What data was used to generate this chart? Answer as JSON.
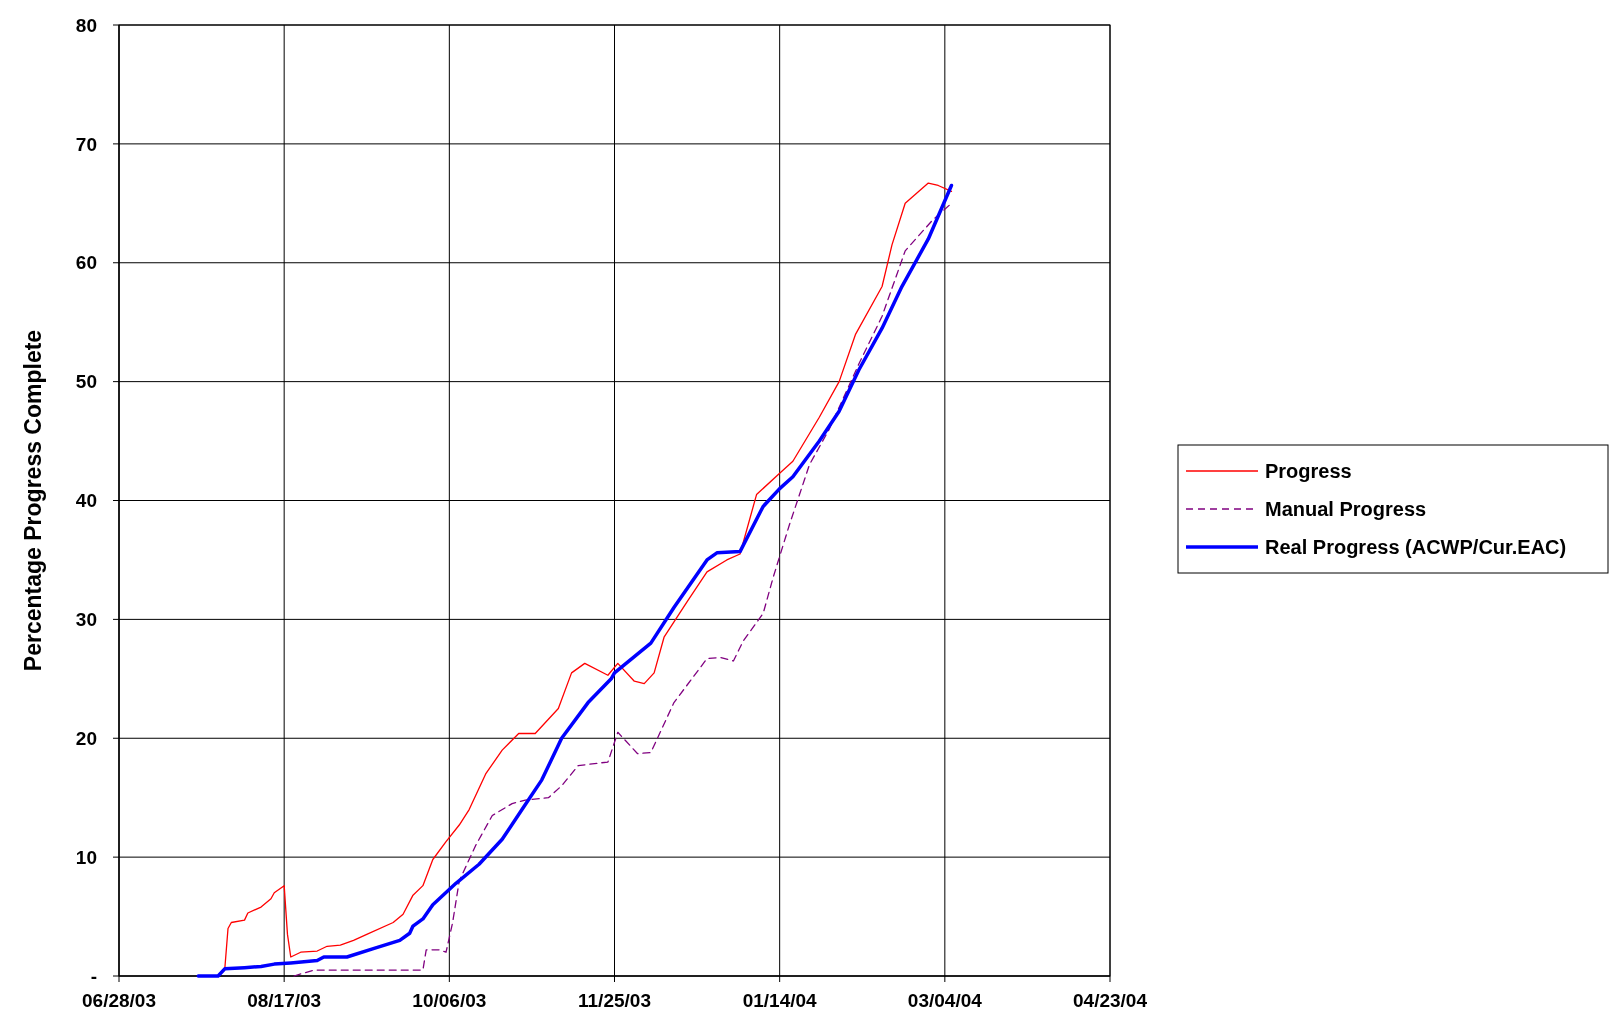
{
  "chart_data": {
    "type": "line",
    "ylabel": "Percentage Progress Complete",
    "xlim": [
      "2003-06-28",
      "2004-04-23"
    ],
    "xticks": [
      {
        "value": "2003-06-28",
        "label": "06/28/03"
      },
      {
        "value": "2003-08-17",
        "label": "08/17/03"
      },
      {
        "value": "2003-10-06",
        "label": "10/06/03"
      },
      {
        "value": "2003-11-25",
        "label": "11/25/03"
      },
      {
        "value": "2004-01-14",
        "label": "01/14/04"
      },
      {
        "value": "2004-03-04",
        "label": "03/04/04"
      },
      {
        "value": "2004-04-23",
        "label": "04/23/04"
      }
    ],
    "ylim": [
      0,
      80
    ],
    "yticks": [
      {
        "value": 0,
        "label": "-"
      },
      10,
      20,
      30,
      40,
      50,
      60,
      70,
      80
    ],
    "grid": true,
    "legend": "right",
    "series": [
      {
        "name": "Progress",
        "color": "#ff0000",
        "line_style": "solid",
        "x": [
          "2003-07-28",
          "2003-07-30",
          "2003-07-31",
          "2003-08-01",
          "2003-08-05",
          "2003-08-06",
          "2003-08-10",
          "2003-08-13",
          "2003-08-14",
          "2003-08-17",
          "2003-08-18",
          "2003-08-19",
          "2003-08-22",
          "2003-08-27",
          "2003-08-30",
          "2003-09-03",
          "2003-09-07",
          "2003-09-11",
          "2003-09-19",
          "2003-09-22",
          "2003-09-25",
          "2003-09-28",
          "2003-10-01",
          "2003-10-05",
          "2003-10-09",
          "2003-10-12",
          "2003-10-17",
          "2003-10-22",
          "2003-10-27",
          "2003-11-01",
          "2003-11-08",
          "2003-11-12",
          "2003-11-16",
          "2003-11-23",
          "2003-11-26",
          "2003-12-01",
          "2003-12-04",
          "2003-12-07",
          "2003-12-10",
          "2003-12-17",
          "2003-12-23",
          "2003-12-29",
          "2004-01-02",
          "2004-01-07",
          "2004-01-14",
          "2004-01-18",
          "2004-01-26",
          "2004-02-01",
          "2004-02-06",
          "2004-02-14",
          "2004-02-17",
          "2004-02-21",
          "2004-02-28",
          "2004-03-02",
          "2004-03-06"
        ],
        "values": [
          0,
          0.5,
          4.0,
          4.5,
          4.7,
          5.3,
          5.8,
          6.5,
          7.0,
          7.6,
          3.5,
          1.6,
          2.0,
          2.1,
          2.5,
          2.6,
          3.0,
          3.5,
          4.5,
          5.2,
          6.8,
          7.6,
          9.8,
          11.3,
          12.7,
          14.0,
          17.0,
          19.0,
          20.4,
          20.4,
          22.5,
          25.5,
          26.3,
          25.3,
          26.3,
          24.8,
          24.6,
          25.5,
          28.5,
          31.5,
          34.0,
          35.0,
          35.5,
          40.5,
          42.3,
          43.3,
          47.0,
          50.0,
          54.0,
          58.0,
          61.5,
          65.0,
          66.7,
          66.5,
          66.0
        ]
      },
      {
        "name": "Manual Progress",
        "color": "#800080",
        "line_style": "dashed",
        "x": [
          "2003-08-20",
          "2003-08-26",
          "2003-09-28",
          "2003-09-29",
          "2003-10-03",
          "2003-10-05",
          "2003-10-07",
          "2003-10-09",
          "2003-10-14",
          "2003-10-19",
          "2003-10-25",
          "2003-10-29",
          "2003-11-05",
          "2003-11-09",
          "2003-11-14",
          "2003-11-23",
          "2003-11-26",
          "2003-12-02",
          "2003-12-06",
          "2003-12-13",
          "2003-12-23",
          "2003-12-27",
          "2003-12-31",
          "2004-01-03",
          "2004-01-09",
          "2004-01-12",
          "2004-01-17",
          "2004-01-23",
          "2004-01-29",
          "2004-02-07",
          "2004-02-14",
          "2004-02-21",
          "2004-02-29",
          "2004-03-06"
        ],
        "values": [
          0,
          0.5,
          0.5,
          2.2,
          2.2,
          2.0,
          4.5,
          8,
          11,
          13.5,
          14.5,
          14.8,
          15.0,
          16.0,
          17.7,
          18.0,
          20.5,
          18.7,
          18.8,
          23.0,
          26.7,
          26.8,
          26.5,
          28.2,
          30.5,
          33.5,
          38.0,
          43.0,
          46.0,
          51.5,
          55.5,
          61.0,
          63.5,
          65.0
        ]
      },
      {
        "name": "Real Progress (ACWP/Cur.EAC)",
        "color": "#0000ff",
        "line_style": "solid",
        "x": [
          "2003-07-22",
          "2003-07-28",
          "2003-07-30",
          "2003-08-05",
          "2003-08-10",
          "2003-08-14",
          "2003-08-19",
          "2003-08-27",
          "2003-08-29",
          "2003-09-05",
          "2003-09-13",
          "2003-09-21",
          "2003-09-24",
          "2003-09-25",
          "2003-09-28",
          "2003-10-01",
          "2003-10-08",
          "2003-10-15",
          "2003-10-22",
          "2003-10-28",
          "2003-11-03",
          "2003-11-09",
          "2003-11-17",
          "2003-11-24",
          "2003-11-25",
          "2003-12-06",
          "2003-12-13",
          "2003-12-23",
          "2003-12-26",
          "2004-01-02",
          "2004-01-09",
          "2004-01-14",
          "2004-01-18",
          "2004-01-26",
          "2004-02-01",
          "2004-02-07",
          "2004-02-14",
          "2004-02-20",
          "2004-02-28",
          "2004-03-06"
        ],
        "values": [
          0,
          0,
          0.6,
          0.7,
          0.8,
          1.0,
          1.1,
          1.3,
          1.6,
          1.6,
          2.3,
          3.0,
          3.6,
          4.2,
          4.8,
          6.0,
          7.8,
          9.4,
          11.5,
          14,
          16.5,
          20,
          23,
          25,
          25.5,
          28,
          31,
          35,
          35.6,
          35.7,
          39.5,
          41,
          42,
          45,
          47.5,
          51,
          54.5,
          58,
          62,
          66.5
        ]
      }
    ]
  }
}
